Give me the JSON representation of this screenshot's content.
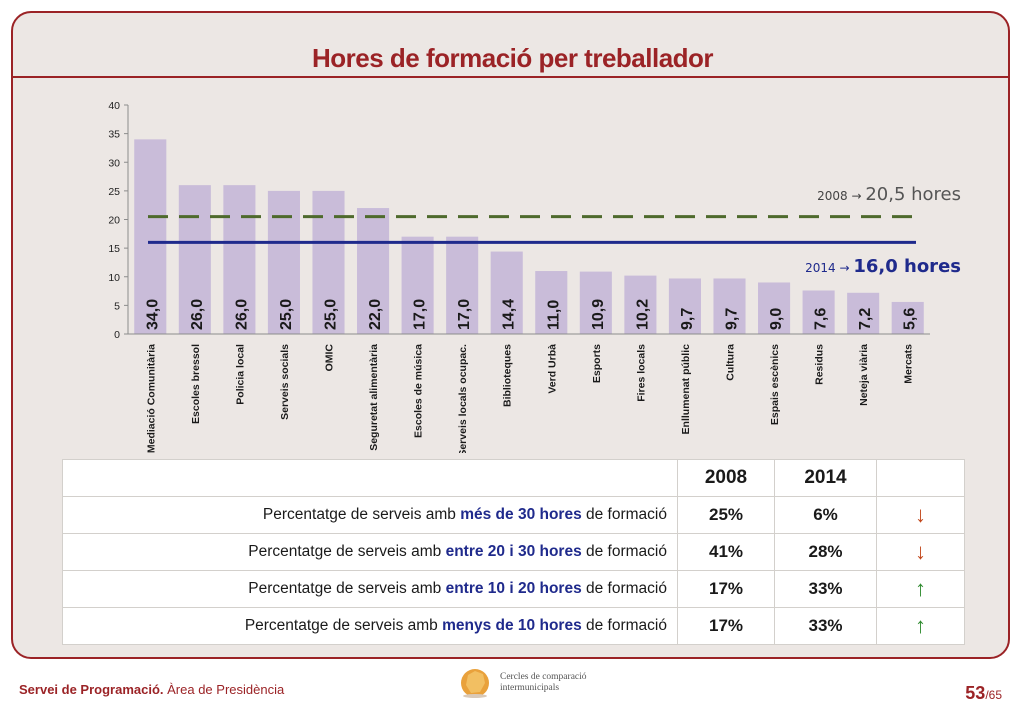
{
  "title": "Hores de formació per treballador",
  "chart_data": {
    "type": "bar",
    "title": "Hores de formació per treballador",
    "categories": [
      "Mediació Comunitària",
      "Escoles bressol",
      "Policia local",
      "Serveis socials",
      "OMIC",
      "Seguretat alimentària",
      "Escoles de música",
      "Serveis locals ocupac.",
      "Biblioteques",
      "Verd Urbà",
      "Esports",
      "Fires locals",
      "Enllumenat públic",
      "Cultura",
      "Espais escènics",
      "Residus",
      "Neteja viària",
      "Mercats"
    ],
    "values": [
      34.0,
      26.0,
      26.0,
      25.0,
      25.0,
      22.0,
      17.0,
      17.0,
      14.4,
      11.0,
      10.9,
      10.2,
      9.7,
      9.7,
      9.0,
      7.6,
      7.2,
      5.6
    ],
    "value_labels": [
      "34,0",
      "26,0",
      "26,0",
      "25,0",
      "25,0",
      "22,0",
      "17,0",
      "17,0",
      "14,4",
      "11,0",
      "10,9",
      "10,2",
      "9,7",
      "9,7",
      "9,0",
      "7,6",
      "7,2",
      "5,6"
    ],
    "ylim": [
      0,
      40
    ],
    "yticks": [
      0,
      5,
      10,
      15,
      20,
      25,
      30,
      35,
      40
    ],
    "xlabel": "",
    "ylabel": "",
    "bar_color": "#c9bcd9",
    "reference_lines": [
      {
        "year": "2008",
        "value": 20.5,
        "label": "20,5 hores",
        "color": "#4e6a2c",
        "style": "dashed"
      },
      {
        "year": "2014",
        "value": 16.0,
        "label": "16,0 hores",
        "color": "#1f2a8c",
        "style": "solid"
      }
    ],
    "arrow_glyph": "→"
  },
  "table": {
    "headers": [
      "2008",
      "2014"
    ],
    "rows": [
      {
        "pre": "Percentatge de serveis amb ",
        "highlight": "més de 30 hores",
        "post": " de formació",
        "v2008": "25%",
        "v2014": "6%",
        "trend": "down"
      },
      {
        "pre": "Percentatge de serveis amb ",
        "highlight": "entre 20 i 30 hores",
        "post": " de formació",
        "v2008": "41%",
        "v2014": "28%",
        "trend": "down"
      },
      {
        "pre": "Percentatge de serveis amb ",
        "highlight": "entre 10 i 20 hores",
        "post": " de formació",
        "v2008": "17%",
        "v2014": "33%",
        "trend": "up"
      },
      {
        "pre": "Percentatge de serveis amb ",
        "highlight": "menys de 10 hores",
        "post": " de formació",
        "v2008": "17%",
        "v2014": "33%",
        "trend": "up"
      }
    ],
    "up_color": "#2e8a2e",
    "down_color": "#c2471b"
  },
  "footer": {
    "dept_bold": "Servei de Programació.",
    "dept_rest": " Àrea de Presidència",
    "logo_line1": "Cercles de comparació",
    "logo_line2": "intermunicipals",
    "page": "53",
    "total": "/65"
  },
  "colors": {
    "accent": "#9b2326",
    "background": "#ece7e4"
  }
}
